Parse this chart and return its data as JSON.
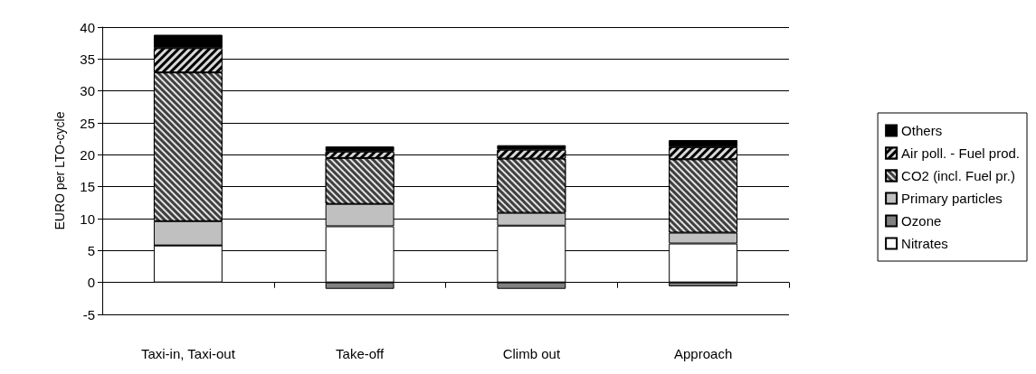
{
  "chart_data": {
    "type": "bar",
    "stacked": true,
    "ylabel": "EURO per LTO-cycle",
    "categories": [
      "Taxi-in, Taxi-out",
      "Take-off",
      "Climb out",
      "Approach"
    ],
    "series": [
      {
        "name": "Nitrates",
        "color": "#ffffff",
        "values": [
          5.8,
          8.8,
          8.9,
          6.1
        ]
      },
      {
        "name": "Ozone",
        "color": "#808080",
        "values": [
          0,
          -1.0,
          -1.0,
          -0.6
        ]
      },
      {
        "name": "Primary particles",
        "color": "#c0c0c0",
        "values": [
          3.8,
          3.5,
          2.0,
          1.7
        ]
      },
      {
        "name": "CO2 (incl. Fuel pr.)",
        "color": "#404040",
        "values": [
          23.3,
          7.2,
          8.5,
          11.5
        ]
      },
      {
        "name": "Air poll. - Fuel prod.",
        "color": "#000000",
        "values": [
          3.8,
          1.0,
          1.4,
          1.9
        ]
      },
      {
        "name": "Others",
        "color": "#000000",
        "values": [
          2.1,
          0.8,
          0.7,
          1.1
        ]
      }
    ],
    "ylim": [
      -5,
      40
    ],
    "yticks": [
      -5,
      0,
      5,
      10,
      15,
      20,
      25,
      30,
      35,
      40
    ],
    "grid": "y",
    "legend": "right"
  }
}
